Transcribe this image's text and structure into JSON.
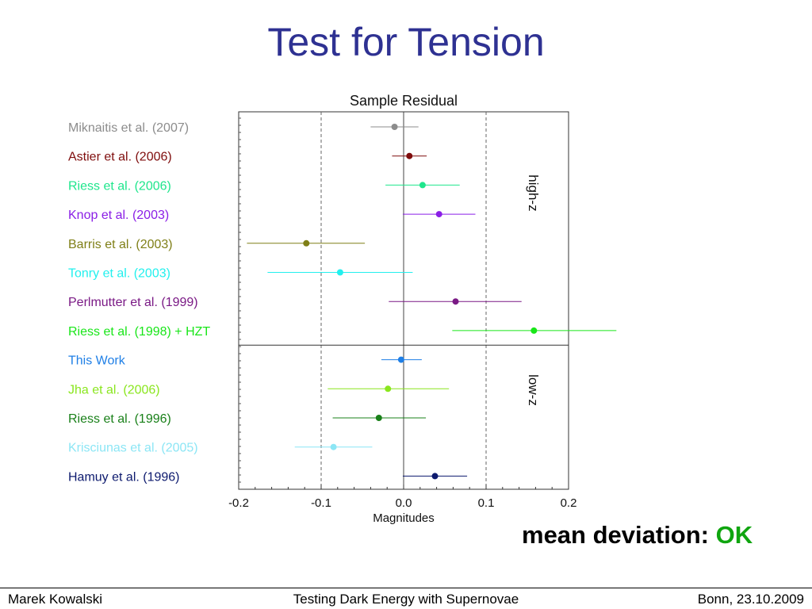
{
  "slide": {
    "title": "Test for Tension",
    "verdict_label": "mean deviation:",
    "verdict_value": "OK",
    "footer_left": "Marek Kowalski",
    "footer_center": "Testing Dark Energy with Supernovae",
    "footer_right": "Bonn, 23.10.2009"
  },
  "chart_data": {
    "type": "scatter",
    "title": "Sample Residual",
    "xlabel": "Magnitudes",
    "xlim": [
      -0.2,
      0.2
    ],
    "xticks": [
      "-0.2",
      "-0.1",
      "0.0",
      "0.1",
      "0.2"
    ],
    "reference_lines": [
      -0.1,
      0.0,
      0.1
    ],
    "groups": [
      {
        "label": "high-z",
        "rows": 8
      },
      {
        "label": "low-z",
        "rows": 5
      }
    ],
    "series": [
      {
        "name": "Miknaitis et al. (2007)",
        "value": -0.011,
        "err_low": -0.04,
        "err_high": 0.018,
        "color": "#8c8c8c"
      },
      {
        "name": "Astier et al. (2006)",
        "value": 0.007,
        "err_low": -0.014,
        "err_high": 0.028,
        "color": "#7f0d0d"
      },
      {
        "name": "Riess et al. (2006)",
        "value": 0.023,
        "err_low": -0.022,
        "err_high": 0.068,
        "color": "#1ee68c"
      },
      {
        "name": "Knop et al. (2003)",
        "value": 0.043,
        "err_low": -0.001,
        "err_high": 0.087,
        "color": "#8a1ee6"
      },
      {
        "name": "Barris et al. (2003)",
        "value": -0.118,
        "err_low": -0.19,
        "err_high": -0.047,
        "color": "#7f7f17"
      },
      {
        "name": "Tonry et al. (2003)",
        "value": -0.077,
        "err_low": -0.165,
        "err_high": 0.011,
        "color": "#22f0ee"
      },
      {
        "name": "Perlmutter et al. (1999)",
        "value": 0.063,
        "err_low": -0.018,
        "err_high": 0.143,
        "color": "#7a1985"
      },
      {
        "name": "Riess et al. (1998) + HZT",
        "value": 0.158,
        "err_low": 0.059,
        "err_high": 0.258,
        "color": "#19e619"
      },
      {
        "name": "This Work",
        "value": -0.003,
        "err_low": -0.027,
        "err_high": 0.022,
        "color": "#1f7fe6"
      },
      {
        "name": "Jha et al. (2006)",
        "value": -0.019,
        "err_low": -0.092,
        "err_high": 0.055,
        "color": "#8ae61e"
      },
      {
        "name": "Riess et al. (1996)",
        "value": -0.03,
        "err_low": -0.086,
        "err_high": 0.027,
        "color": "#198019"
      },
      {
        "name": "Krisciunas et al. (2005)",
        "value": -0.085,
        "err_low": -0.132,
        "err_high": -0.038,
        "color": "#8ce6f5"
      },
      {
        "name": "Hamuy et al. (1996)",
        "value": 0.038,
        "err_low": -0.001,
        "err_high": 0.077,
        "color": "#0d1a6e"
      }
    ]
  }
}
